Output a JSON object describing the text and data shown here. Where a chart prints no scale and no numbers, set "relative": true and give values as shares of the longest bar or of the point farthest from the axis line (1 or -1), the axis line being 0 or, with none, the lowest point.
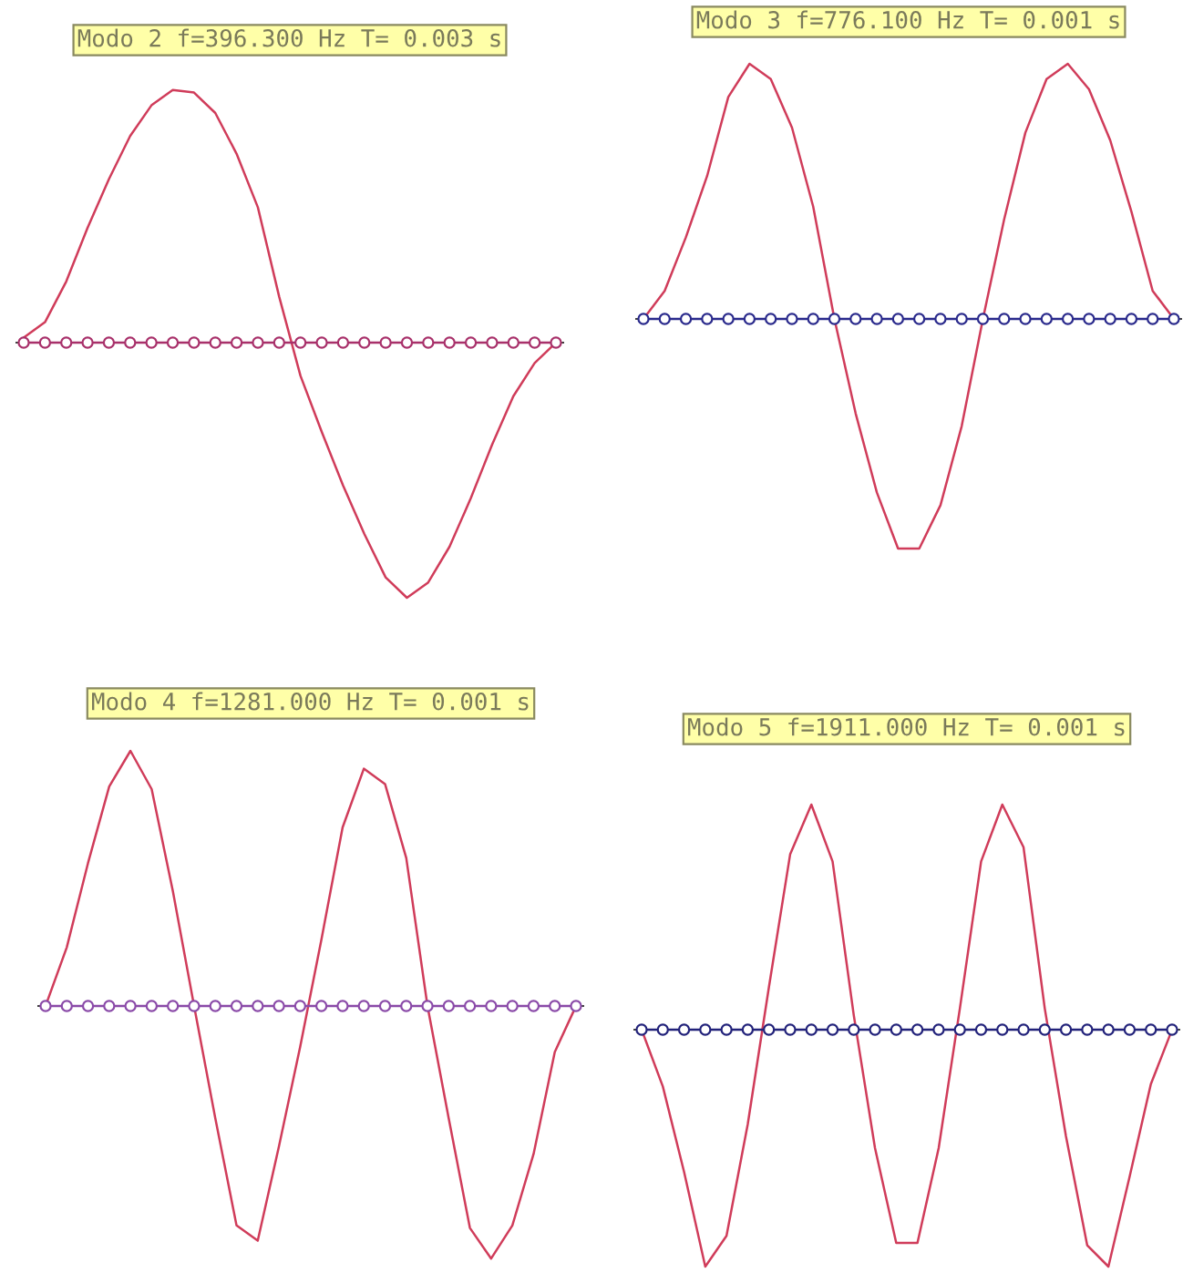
{
  "chart_data": [
    {
      "type": "line",
      "title": "Modo 2 f=396.300 Hz T= 0.003 s",
      "relative": true,
      "categories": [
        null,
        null,
        null,
        null,
        null,
        null,
        null,
        null,
        null,
        null,
        null,
        null,
        null,
        null,
        null,
        null,
        null,
        null,
        null,
        null,
        null,
        null,
        null,
        null,
        null,
        null
      ],
      "series": [
        {
          "type": "line",
          "color": "#d03c5a",
          "marker": "none",
          "values": [
            0.02,
            0.08,
            0.24,
            0.45,
            0.64,
            0.81,
            0.93,
            0.99,
            0.98,
            0.9,
            0.74,
            0.53,
            0.18,
            -0.13,
            -0.35,
            -0.56,
            -0.75,
            -0.92,
            -1.0,
            -0.94,
            -0.8,
            -0.61,
            -0.4,
            -0.21,
            -0.08,
            0.0
          ]
        },
        {
          "type": "line",
          "color": "#a8306a",
          "marker": "circle",
          "values": [
            0,
            0,
            0,
            0,
            0,
            0,
            0,
            0,
            0,
            0,
            0,
            0,
            0,
            0,
            0,
            0,
            0,
            0,
            0,
            0,
            0,
            0,
            0,
            0,
            0,
            0
          ]
        }
      ]
    },
    {
      "type": "line",
      "title": "Modo 3 f=776.100 Hz T= 0.001 s",
      "relative": true,
      "categories": [
        null,
        null,
        null,
        null,
        null,
        null,
        null,
        null,
        null,
        null,
        null,
        null,
        null,
        null,
        null,
        null,
        null,
        null,
        null,
        null,
        null,
        null,
        null,
        null,
        null,
        null
      ],
      "series": [
        {
          "type": "line",
          "color": "#d03c5a",
          "marker": "none",
          "values": [
            0.0,
            0.11,
            0.32,
            0.56,
            0.87,
            1.0,
            0.94,
            0.75,
            0.44,
            0.0,
            -0.37,
            -0.68,
            -0.9,
            -0.9,
            -0.73,
            -0.42,
            0.0,
            0.39,
            0.73,
            0.94,
            1.0,
            0.9,
            0.7,
            0.42,
            0.11,
            0.0
          ]
        },
        {
          "type": "line",
          "color": "#2a2a8c",
          "marker": "circle",
          "values": [
            0,
            0,
            0,
            0,
            0,
            0,
            0,
            0,
            0,
            0,
            0,
            0,
            0,
            0,
            0,
            0,
            0,
            0,
            0,
            0,
            0,
            0,
            0,
            0,
            0,
            0
          ]
        }
      ]
    },
    {
      "type": "line",
      "title": "Modo 4 f=1281.000 Hz T= 0.001 s",
      "relative": true,
      "categories": [
        null,
        null,
        null,
        null,
        null,
        null,
        null,
        null,
        null,
        null,
        null,
        null,
        null,
        null,
        null,
        null,
        null,
        null,
        null,
        null,
        null,
        null,
        null,
        null,
        null,
        null
      ],
      "series": [
        {
          "type": "line",
          "color": "#d03c5a",
          "marker": "none",
          "values": [
            0.0,
            0.23,
            0.56,
            0.86,
            1.0,
            0.85,
            0.45,
            0.0,
            -0.44,
            -0.86,
            -0.92,
            -0.55,
            -0.16,
            0.26,
            0.7,
            0.93,
            0.87,
            0.58,
            0.0,
            -0.44,
            -0.87,
            -0.99,
            -0.86,
            -0.58,
            -0.18,
            0.0
          ]
        },
        {
          "type": "line",
          "color": "#8a4aa8",
          "marker": "circle",
          "values": [
            0,
            0,
            0,
            0,
            0,
            0,
            0,
            0,
            0,
            0,
            0,
            0,
            0,
            0,
            0,
            0,
            0,
            0,
            0,
            0,
            0,
            0,
            0,
            0,
            0,
            0
          ]
        }
      ]
    },
    {
      "type": "line",
      "title": "Modo 5 f=1911.000 Hz T= 0.001 s",
      "relative": true,
      "categories": [
        null,
        null,
        null,
        null,
        null,
        null,
        null,
        null,
        null,
        null,
        null,
        null,
        null,
        null,
        null,
        null,
        null,
        null,
        null,
        null,
        null,
        null,
        null,
        null,
        null,
        null
      ],
      "series": [
        {
          "type": "line",
          "color": "#d03c5a",
          "marker": "none",
          "values": [
            0.0,
            -0.24,
            -0.6,
            -1.0,
            -0.87,
            -0.4,
            0.18,
            0.74,
            0.95,
            0.71,
            0.06,
            -0.5,
            -0.9,
            -0.9,
            -0.5,
            0.09,
            0.71,
            0.95,
            0.77,
            0.09,
            -0.45,
            -0.91,
            -1.0,
            -0.62,
            -0.23,
            0.0
          ]
        },
        {
          "type": "line",
          "color": "#22227a",
          "marker": "circle",
          "values": [
            0,
            0,
            0,
            0,
            0,
            0,
            0,
            0,
            0,
            0,
            0,
            0,
            0,
            0,
            0,
            0,
            0,
            0,
            0,
            0,
            0,
            0,
            0,
            0,
            0,
            0
          ]
        }
      ]
    }
  ]
}
